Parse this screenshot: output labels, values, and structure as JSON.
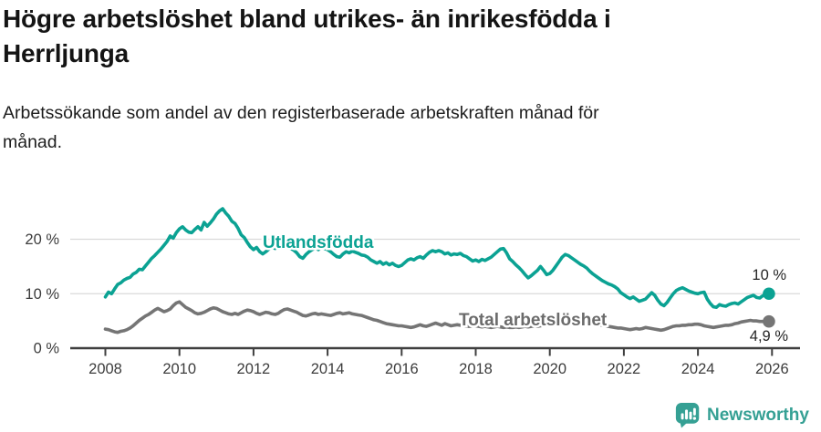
{
  "header": {
    "title_lines": [
      "Högre arbetslöshet bland utrikes- än inrikesfödda i",
      "Herrljunga"
    ],
    "subtitle_lines": [
      "Arbetssökande som andel av den registerbaserade arbetskraften månad för",
      "månad."
    ]
  },
  "footer": {
    "brand": "Newsworthy",
    "brand_icon": "chart-speech-bubble-icon",
    "brand_color": "#35a094"
  },
  "chart_data": {
    "type": "line",
    "title": "Högre arbetslöshet bland utrikes- än inrikesfödda i Herrljunga",
    "subtitle": "Arbetssökande som andel av den registerbaserade arbetskraften månad för månad.",
    "unit": "%",
    "grid": true,
    "legend_position": "inline-labels",
    "ylim": [
      0,
      27
    ],
    "xlim": [
      2007.8,
      2026.7
    ],
    "y_ticks": [
      {
        "v": 0,
        "label": "0 %"
      },
      {
        "v": 10,
        "label": "10 %"
      },
      {
        "v": 20,
        "label": "20 %"
      }
    ],
    "x_ticks": [
      2008,
      2010,
      2012,
      2014,
      2016,
      2018,
      2020,
      2022,
      2024,
      2026
    ],
    "colors": {
      "foreign_born": "#0ba293",
      "total": "#757575",
      "grid": "#dadada",
      "axis": "#3f3f3f",
      "tick_text": "#3c3c3c",
      "annotation_text": "#252525"
    },
    "series": [
      {
        "name": "Utlandsfödda",
        "color": "#0ba293",
        "label_color": "#0ba293",
        "end_label": "10 %",
        "end_value": 10.0,
        "start_year": 2008,
        "step_months": 1,
        "values": [
          9.4,
          10.3,
          10.0,
          10.9,
          11.7,
          12.0,
          12.5,
          12.8,
          13.0,
          13.6,
          13.9,
          14.5,
          14.4,
          15.1,
          15.8,
          16.5,
          17.0,
          17.6,
          18.2,
          18.9,
          19.6,
          20.6,
          20.2,
          21.2,
          21.9,
          22.3,
          21.7,
          21.3,
          21.2,
          21.8,
          22.3,
          21.7,
          23.1,
          22.4,
          23.0,
          23.7,
          24.6,
          25.2,
          25.6,
          24.8,
          24.2,
          23.3,
          22.9,
          22.0,
          20.8,
          20.3,
          19.4,
          18.6,
          18.1,
          18.5,
          17.7,
          17.3,
          17.7,
          18.2,
          18.6,
          18.3,
          18.8,
          18.5,
          18.9,
          18.5,
          18.3,
          18.0,
          17.5,
          16.8,
          16.5,
          17.2,
          17.7,
          18.1,
          18.4,
          18.1,
          18.5,
          18.3,
          18.1,
          17.7,
          17.2,
          16.8,
          16.7,
          17.3,
          17.7,
          17.5,
          17.8,
          17.6,
          17.4,
          17.1,
          17.0,
          16.7,
          16.2,
          15.9,
          15.6,
          15.9,
          15.4,
          15.7,
          15.3,
          15.6,
          15.2,
          15.0,
          15.2,
          15.7,
          16.2,
          16.4,
          16.2,
          16.6,
          16.8,
          16.5,
          17.1,
          17.6,
          17.9,
          17.7,
          17.9,
          17.7,
          17.3,
          17.5,
          17.1,
          17.3,
          17.2,
          17.4,
          17.0,
          16.8,
          16.4,
          16.0,
          16.2,
          15.9,
          16.3,
          16.1,
          16.4,
          16.7,
          17.2,
          17.7,
          18.2,
          18.3,
          17.5,
          16.4,
          15.9,
          15.3,
          14.8,
          14.2,
          13.5,
          12.9,
          13.3,
          13.8,
          14.3,
          15.0,
          14.3,
          13.5,
          13.7,
          14.3,
          15.1,
          15.9,
          16.7,
          17.2,
          17.0,
          16.6,
          16.2,
          15.8,
          15.4,
          15.1,
          14.7,
          14.1,
          13.6,
          13.2,
          12.8,
          12.4,
          12.1,
          11.8,
          11.6,
          11.3,
          10.9,
          10.2,
          9.8,
          9.4,
          9.1,
          9.4,
          9.0,
          8.6,
          8.8,
          9.0,
          9.6,
          10.2,
          9.7,
          8.8,
          8.1,
          7.8,
          8.4,
          9.2,
          10.0,
          10.6,
          10.9,
          11.1,
          10.8,
          10.5,
          10.3,
          10.1,
          10.0,
          10.2,
          10.3,
          9.0,
          8.2,
          7.6,
          7.5,
          8.0,
          7.8,
          7.7,
          8.0,
          8.2,
          8.3,
          8.1,
          8.5,
          8.9,
          9.3,
          9.5,
          9.7,
          9.3,
          9.2,
          9.6,
          9.8,
          10.0
        ]
      },
      {
        "name": "Total arbetslöshet",
        "color": "#757575",
        "label_color": "#6b6b6b",
        "end_label": "4,9 %",
        "end_value": 4.9,
        "start_year": 2008,
        "step_months": 1,
        "values": [
          3.5,
          3.4,
          3.2,
          3.0,
          2.9,
          3.1,
          3.2,
          3.4,
          3.7,
          4.1,
          4.6,
          5.1,
          5.5,
          5.9,
          6.2,
          6.6,
          7.0,
          7.3,
          7.0,
          6.7,
          6.9,
          7.2,
          7.8,
          8.3,
          8.5,
          8.0,
          7.5,
          7.2,
          6.9,
          6.5,
          6.3,
          6.4,
          6.6,
          6.9,
          7.2,
          7.4,
          7.3,
          7.0,
          6.7,
          6.5,
          6.3,
          6.2,
          6.4,
          6.2,
          6.5,
          6.8,
          7.0,
          6.9,
          6.7,
          6.4,
          6.2,
          6.4,
          6.6,
          6.5,
          6.3,
          6.2,
          6.4,
          6.8,
          7.1,
          7.2,
          7.0,
          6.8,
          6.6,
          6.3,
          6.0,
          5.9,
          6.1,
          6.3,
          6.4,
          6.2,
          6.3,
          6.2,
          6.1,
          6.0,
          6.2,
          6.4,
          6.5,
          6.3,
          6.4,
          6.5,
          6.3,
          6.2,
          6.1,
          6.0,
          5.8,
          5.6,
          5.4,
          5.2,
          5.1,
          4.9,
          4.7,
          4.5,
          4.4,
          4.3,
          4.2,
          4.1,
          4.1,
          4.0,
          3.9,
          3.8,
          3.9,
          4.1,
          4.3,
          4.1,
          4.0,
          4.2,
          4.4,
          4.6,
          4.4,
          4.2,
          4.5,
          4.3,
          4.1,
          4.2,
          4.3,
          4.2,
          4.1,
          4.0,
          4.0,
          4.1,
          4.1,
          4.0,
          3.9,
          4.0,
          3.9,
          3.8,
          3.9,
          4.0,
          3.9,
          3.8,
          3.9,
          3.8,
          3.8,
          3.9,
          3.8,
          3.9,
          4.0,
          3.9,
          4.0,
          4.1,
          4.0,
          4.1,
          4.2,
          4.3,
          4.3,
          4.4,
          4.7,
          5.0,
          5.2,
          5.3,
          5.2,
          5.1,
          5.0,
          4.9,
          4.8,
          4.7,
          4.7,
          4.6,
          4.5,
          4.4,
          4.3,
          4.2,
          4.1,
          4.0,
          3.9,
          3.8,
          3.7,
          3.7,
          3.6,
          3.5,
          3.4,
          3.5,
          3.6,
          3.5,
          3.6,
          3.8,
          3.7,
          3.6,
          3.5,
          3.4,
          3.3,
          3.4,
          3.6,
          3.8,
          4.0,
          4.1,
          4.1,
          4.2,
          4.2,
          4.3,
          4.3,
          4.4,
          4.4,
          4.3,
          4.1,
          4.0,
          3.9,
          3.8,
          3.9,
          4.0,
          4.1,
          4.2,
          4.2,
          4.3,
          4.5,
          4.6,
          4.8,
          4.9,
          5.0,
          5.1,
          5.0,
          5.0,
          4.9,
          4.9,
          4.9,
          4.9
        ]
      }
    ]
  }
}
